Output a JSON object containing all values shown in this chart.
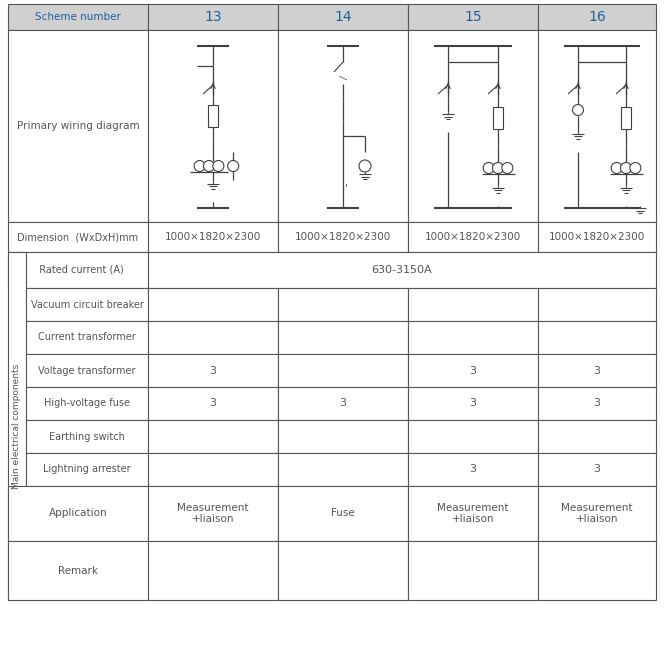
{
  "title_row": [
    "Scheme number",
    "13",
    "14",
    "15",
    "16"
  ],
  "header_bg": "#d0d0d0",
  "header_text_color": "#2060a0",
  "body_text_color": "#404040",
  "border_color": "#555555",
  "dimension_row": [
    "Dimension  (WxDxH)mm",
    "1000×1820×2300",
    "1000×1820×2300",
    "1000×1820×2300",
    "1000×1820×2300"
  ],
  "rated_current": "630-3150A",
  "component_rows": [
    {
      "label": "Vacuum circuit breaker",
      "values": [
        "",
        "",
        "",
        ""
      ]
    },
    {
      "label": "Current transformer",
      "values": [
        "",
        "",
        "",
        ""
      ]
    },
    {
      "label": "Voltage transformer",
      "values": [
        "3",
        "",
        "3",
        "3"
      ]
    },
    {
      "label": "High-voltage fuse",
      "values": [
        "3",
        "3",
        "3",
        "3"
      ]
    },
    {
      "label": "Earthing switch",
      "values": [
        "",
        "",
        "",
        ""
      ]
    },
    {
      "label": "Lightning arrester",
      "values": [
        "",
        "",
        "3",
        "3"
      ]
    }
  ],
  "application_row": [
    "Application",
    "Measurement\n+liaison",
    "Fuse",
    "Measurement\n+liaison",
    "Measurement\n+liaison"
  ],
  "remark_row": [
    "Remark",
    "",
    "",
    "",
    ""
  ],
  "side_label": "Main electrical components",
  "fig_width": 6.64,
  "fig_height": 6.57
}
